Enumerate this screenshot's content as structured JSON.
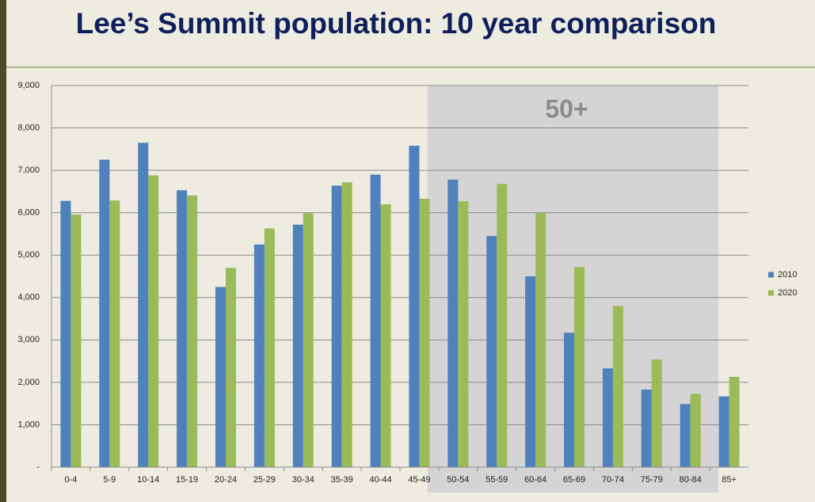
{
  "chart_data": {
    "type": "bar",
    "title": "Lee’s Summit population: 10 year comparison",
    "annotation": "50+",
    "categories": [
      "0-4",
      "5-9",
      "10-14",
      "15-19",
      "20-24",
      "25-29",
      "30-34",
      "35-39",
      "40-44",
      "45-49",
      "50-54",
      "55-59",
      "60-64",
      "65-69",
      "70-74",
      "75-79",
      "80-84",
      "85+"
    ],
    "series": [
      {
        "name": "2010",
        "color": "#4f81bd",
        "values": [
          6280,
          7250,
          7650,
          6530,
          4250,
          5250,
          5720,
          6640,
          6900,
          7580,
          6780,
          5450,
          4500,
          3170,
          2330,
          1830,
          1490,
          1670
        ]
      },
      {
        "name": "2020",
        "color": "#9bbb59",
        "values": [
          5960,
          6290,
          6880,
          6410,
          4700,
          5630,
          5990,
          6720,
          6200,
          6330,
          6270,
          6680,
          6000,
          4720,
          3800,
          2540,
          1730,
          2130
        ]
      }
    ],
    "ylim": [
      0,
      9000
    ],
    "yticks": [
      {
        "value": 0,
        "label": "-"
      },
      {
        "value": 1000,
        "label": "1,000"
      },
      {
        "value": 2000,
        "label": "2,000"
      },
      {
        "value": 3000,
        "label": "3,000"
      },
      {
        "value": 4000,
        "label": "4,000"
      },
      {
        "value": 5000,
        "label": "5,000"
      },
      {
        "value": 6000,
        "label": "6,000"
      },
      {
        "value": 7000,
        "label": "7,000"
      },
      {
        "value": 8000,
        "label": "8,000"
      },
      {
        "value": 9000,
        "label": "9,000"
      }
    ],
    "grid": true,
    "legend": "right"
  }
}
